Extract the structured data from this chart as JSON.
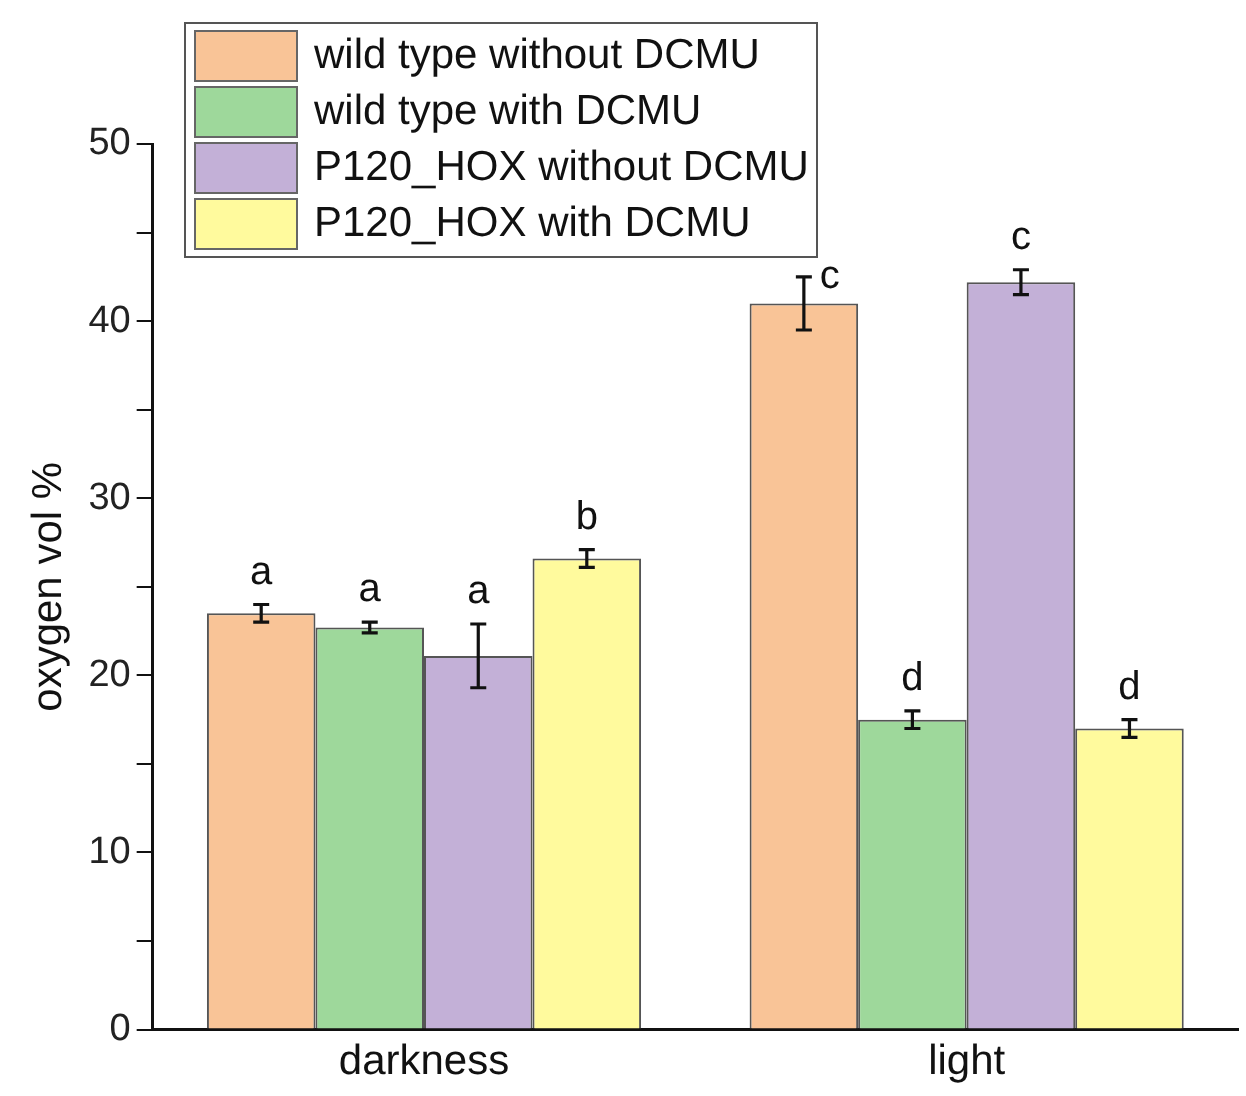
{
  "chart_data": {
    "type": "bar",
    "ylabel": "oxygen vol %",
    "categories": [
      "darkness",
      "light"
    ],
    "series": [
      {
        "name": "wild type without DCMU",
        "color": "#f9c497",
        "values": [
          23.5,
          41.0
        ],
        "errors": [
          0.5,
          1.5
        ],
        "value_labels": [
          "a",
          "c"
        ]
      },
      {
        "name": "wild type with DCMU",
        "color": "#9ed89b",
        "values": [
          22.7,
          17.5
        ],
        "errors": [
          0.3,
          0.5
        ],
        "value_labels": [
          "a",
          "d"
        ]
      },
      {
        "name": "P120_HOX without DCMU",
        "color": "#c3b0d7",
        "values": [
          21.1,
          42.2
        ],
        "errors": [
          1.8,
          0.7
        ],
        "value_labels": [
          "a",
          "c"
        ]
      },
      {
        "name": "P120_HOX with DCMU",
        "color": "#fffa9d",
        "values": [
          26.6,
          17.0
        ],
        "errors": [
          0.5,
          0.5
        ],
        "value_labels": [
          "b",
          "d"
        ]
      }
    ],
    "ylim": [
      0,
      50
    ],
    "yticks": [
      0,
      {
        "value": 5,
        "label": null
      },
      10,
      {
        "value": 15,
        "label": null
      },
      20,
      {
        "value": 25,
        "label": null
      },
      30,
      {
        "value": 35,
        "label": null
      },
      40,
      {
        "value": 45,
        "label": null
      },
      50
    ],
    "grid": false,
    "legend": "top left"
  }
}
